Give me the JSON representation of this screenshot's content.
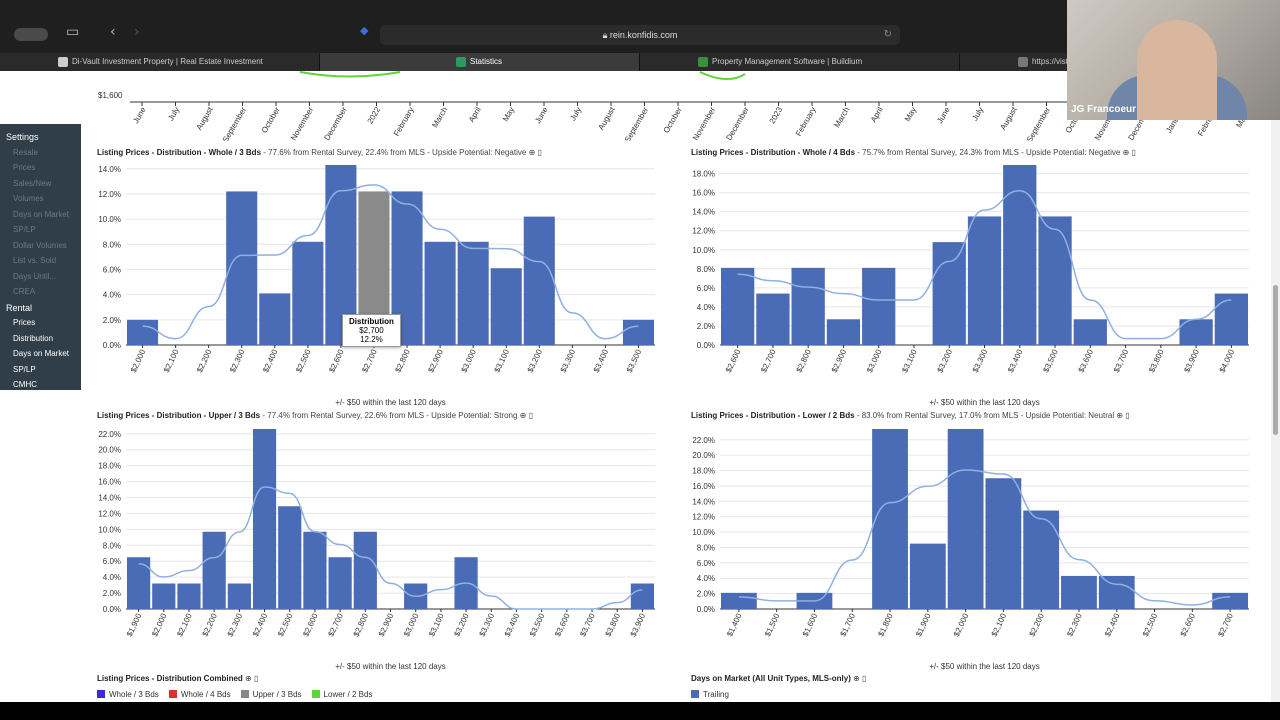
{
  "browser": {
    "url": "rein.konfidis.com",
    "tabs": [
      {
        "label": "Di-Vault Investment Property | Real Estate Investment",
        "active": false,
        "favicon_color": "#cccccc"
      },
      {
        "label": "Statistics",
        "active": true,
        "favicon_color": "#2e9b5e"
      },
      {
        "label": "Property Management Software | Buildium",
        "active": false,
        "favicon_color": "#3a8f3a"
      },
      {
        "label": "https://visturepropety",
        "active": false,
        "favicon_color": "#777777"
      }
    ]
  },
  "video": {
    "presenter_name": "JG Francoeur"
  },
  "sidebar": {
    "items": [
      {
        "label": "Settings",
        "style": "h"
      },
      {
        "label": "Resale",
        "style": "dim"
      },
      {
        "label": "Prices",
        "style": "dim"
      },
      {
        "label": "Sales/New",
        "style": "dim"
      },
      {
        "label": "Volumes",
        "style": "dim"
      },
      {
        "label": "Days on Market",
        "style": "dim"
      },
      {
        "label": "SP/LP",
        "style": "dim"
      },
      {
        "label": "Dollar Volumes",
        "style": "dim"
      },
      {
        "label": "List vs. Sold",
        "style": "dim"
      },
      {
        "label": "Days Until...",
        "style": "dim"
      },
      {
        "label": "CREA",
        "style": "dim"
      },
      {
        "label": "Rental",
        "style": "h"
      },
      {
        "label": "Prices",
        "style": "sub"
      },
      {
        "label": "Distribution",
        "style": "sub"
      },
      {
        "label": "Days on Market",
        "style": "sub"
      },
      {
        "label": "SP/LP",
        "style": "sub"
      },
      {
        "label": "CMHC",
        "style": "sub"
      }
    ]
  },
  "top_axis": {
    "y_label": "$1,600",
    "months": [
      "June",
      "July",
      "August",
      "September",
      "October",
      "November",
      "December",
      "2022",
      "February",
      "March",
      "April",
      "May",
      "June",
      "July",
      "August",
      "September",
      "October",
      "November",
      "December",
      "2023",
      "February",
      "March",
      "April",
      "May",
      "June",
      "July",
      "August",
      "September",
      "October",
      "November",
      "December",
      "January",
      "February",
      "March"
    ]
  },
  "tooltip": {
    "title": "Distribution",
    "line1": "$2,700",
    "line2": "12.2%"
  },
  "chart_data": [
    {
      "type": "bar",
      "title": "Listing Prices - Distribution - Whole / 3 Bds",
      "subtitle": " - 77.6% from Rental Survey, 22.4% from MLS - Upside Potential: Negative",
      "xlabel": "+/- $50 within the last 120 days",
      "categories": [
        "$2,000",
        "$2,100",
        "$2,200",
        "$2,300",
        "$2,400",
        "$2,500",
        "$2,600",
        "$2,700",
        "$2,800",
        "$2,900",
        "$3,000",
        "$3,100",
        "$3,200",
        "$3,300",
        "$3,400",
        "$3,500"
      ],
      "values": [
        2.0,
        0,
        0,
        12.2,
        4.1,
        8.2,
        14.3,
        12.2,
        12.2,
        8.2,
        8.2,
        6.1,
        10.2,
        0,
        0,
        2.0
      ],
      "highlight_index": 7,
      "yticks": [
        0,
        2,
        4,
        6,
        8,
        10,
        12,
        14
      ],
      "ylim": [
        0,
        14.3
      ],
      "ytick_suffix": ".0%"
    },
    {
      "type": "bar",
      "title": "Listing Prices - Distribution - Whole / 4 Bds",
      "subtitle": " - 75.7% from Rental Survey, 24.3% from MLS - Upside Potential: Negative",
      "xlabel": "+/- $50 within the last 120 days",
      "categories": [
        "$2,600",
        "$2,700",
        "$2,800",
        "$2,900",
        "$3,000",
        "$3,100",
        "$3,200",
        "$3,300",
        "$3,400",
        "$3,500",
        "$3,600",
        "$3,700",
        "$3,800",
        "$3,900",
        "$4,000"
      ],
      "values": [
        8.1,
        5.4,
        8.1,
        2.7,
        8.1,
        0,
        10.8,
        13.5,
        18.9,
        13.5,
        2.7,
        0,
        0,
        2.7,
        5.4
      ],
      "highlight_index": -1,
      "yticks": [
        0,
        2,
        4,
        6,
        8,
        10,
        12,
        14,
        16,
        18
      ],
      "ylim": [
        0,
        18.9
      ],
      "ytick_suffix": ".0%"
    },
    {
      "type": "bar",
      "title": "Listing Prices - Distribution - Upper / 3 Bds",
      "subtitle": " - 77.4% from Rental Survey, 22.6% from MLS - Upside Potential: Strong",
      "xlabel": "+/- $50 within the last 120 days",
      "categories": [
        "$1,900",
        "$2,000",
        "$2,100",
        "$2,200",
        "$2,300",
        "$2,400",
        "$2,500",
        "$2,600",
        "$2,700",
        "$2,800",
        "$2,900",
        "$3,000",
        "$3,100",
        "$3,200",
        "$3,300",
        "$3,400",
        "$3,500",
        "$3,600",
        "$3,700",
        "$3,800",
        "$3,900"
      ],
      "values": [
        6.5,
        3.2,
        3.2,
        9.7,
        3.2,
        22.6,
        12.9,
        9.7,
        6.5,
        9.7,
        0,
        3.2,
        0,
        6.5,
        0,
        0,
        0,
        0,
        0,
        0,
        3.2
      ],
      "highlight_index": -1,
      "yticks": [
        0,
        2,
        4,
        6,
        8,
        10,
        12,
        14,
        16,
        18,
        20,
        22
      ],
      "ylim": [
        0,
        22.6
      ],
      "ytick_suffix": ".0%"
    },
    {
      "type": "bar",
      "title": "Listing Prices - Distribution - Lower / 2 Bds",
      "subtitle": " - 83.0% from Rental Survey, 17.0% from MLS - Upside Potential: Neutral",
      "xlabel": "+/- $50 within the last 120 days",
      "categories": [
        "$1,400",
        "$1,500",
        "$1,600",
        "$1,700",
        "$1,800",
        "$1,900",
        "$2,000",
        "$2,100",
        "$2,200",
        "$2,300",
        "$2,400",
        "$2,500",
        "$2,600",
        "$2,700"
      ],
      "values": [
        2.1,
        0,
        2.1,
        0,
        23.4,
        8.5,
        23.4,
        17.0,
        12.8,
        4.3,
        4.3,
        0,
        0,
        2.1
      ],
      "highlight_index": -1,
      "yticks": [
        0,
        2,
        4,
        6,
        8,
        10,
        12,
        14,
        16,
        18,
        20,
        22
      ],
      "ylim": [
        0,
        23.4
      ],
      "ytick_suffix": ".0%"
    }
  ],
  "bottom": {
    "combined_title": "Listing Prices - Distribution Combined",
    "combined_legend": [
      {
        "label": "Whole / 3 Bds",
        "color": "#3b2bd6"
      },
      {
        "label": "Whole / 4 Bds",
        "color": "#d8322a"
      },
      {
        "label": "Upper / 3 Bds",
        "color": "#888888"
      },
      {
        "label": "Lower / 2 Bds",
        "color": "#5fd33b"
      }
    ],
    "dom_title": "Days on Market (All Unit Types, MLS-only)",
    "dom_legend": [
      {
        "label": "Trailing",
        "color": "#4a6bb5"
      }
    ]
  },
  "colors": {
    "bar": "#4a6bb5",
    "bar_highlight": "#8a8a8a",
    "curve": "#8fb0e0"
  }
}
